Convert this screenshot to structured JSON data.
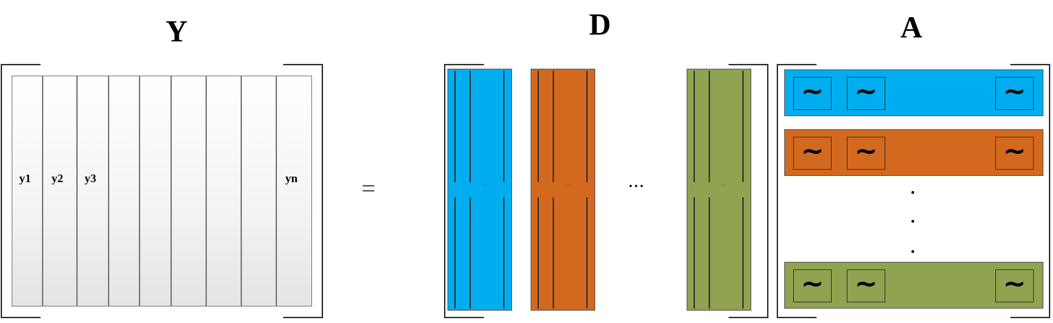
{
  "titles": {
    "y": "Y",
    "d": "D",
    "a": "A"
  },
  "y_labels": [
    "y1",
    "y2",
    "y3",
    "yn"
  ],
  "equals": "=",
  "d_columns": [
    {
      "color": "#00AEEF",
      "dots": "..."
    },
    {
      "color": "#D2691E",
      "dots": "..."
    },
    {
      "color": "#8FA350",
      "dots": "..."
    }
  ],
  "d_ellipsis": "...",
  "a_rows": [
    {
      "color": "#00AEEF",
      "symbol": "~"
    },
    {
      "color": "#D2691E",
      "symbol": "~"
    },
    {
      "color": "#8FA350",
      "symbol": "~"
    }
  ]
}
